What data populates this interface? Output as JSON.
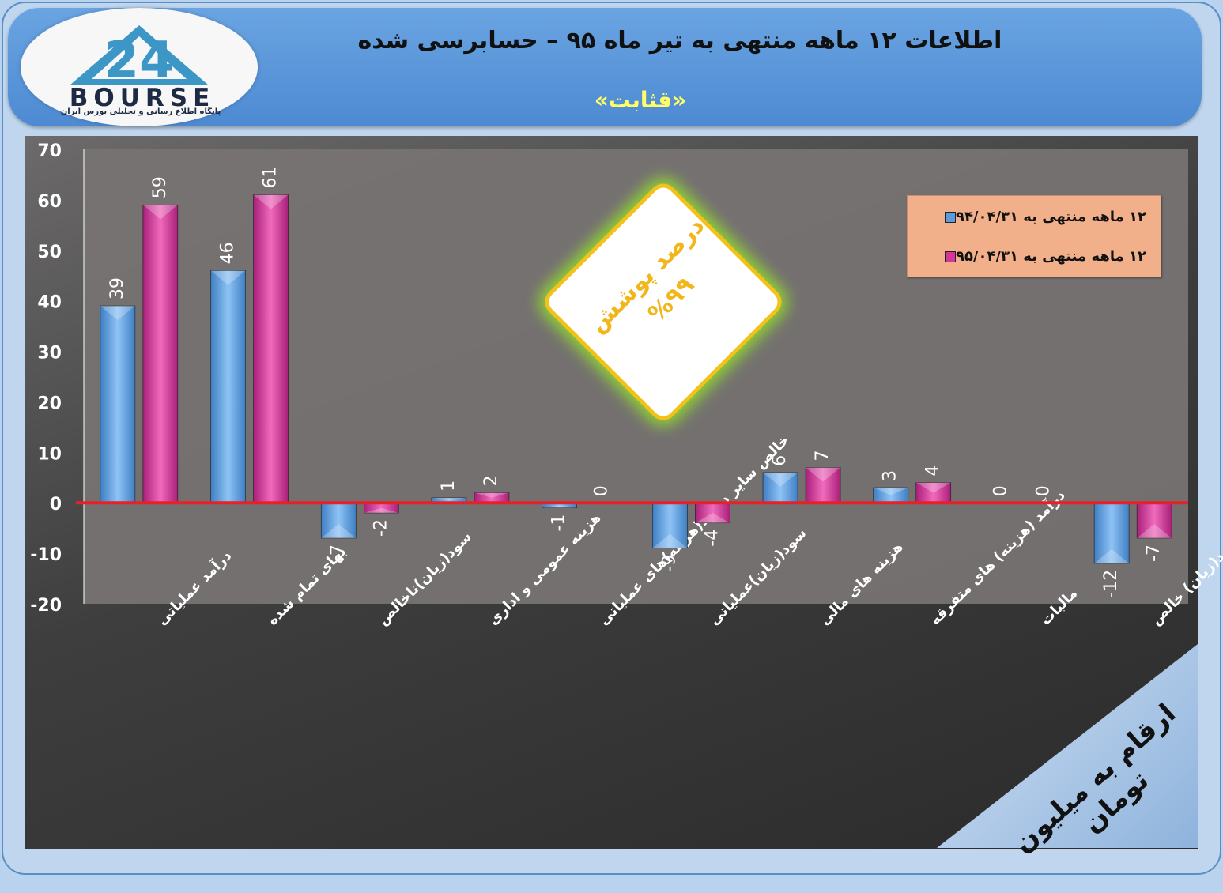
{
  "header": {
    "title": "اطلاعات ۱۲ ماهه منتهی به تیر ماه ۹۵ – حسابرسی شده",
    "subtitle": "«قثابت»",
    "logo_text": "BOURSE",
    "logo_tagline": "پایگاه اطلاع رسانی و تحلیلی بورس ایران"
  },
  "badge": {
    "line1": "درصد پوشش",
    "line2": "%۹۹",
    "border_color": "#f2c21b",
    "text_color": "#f2b61b"
  },
  "units_banner": "ارقام به میلیون تومان",
  "chart_data": {
    "type": "bar",
    "categories": [
      "درآمد عملیاتی",
      "بهای تمام شده",
      "سود(زیان)ناخالص",
      "هزینه عمومی و اداری",
      "خالص سایر درامد(هزینه)های عملیاتی",
      "سود(زیان)عملیاتی",
      "هزینه های مالی",
      "درآمد (هزینه) های متفرقه",
      "مالیات",
      "سود(زیان) خالص"
    ],
    "series": [
      {
        "name": "۱۲ ماهه منتهی به ۹۴/۰۴/۳۱",
        "color": "#5b9be0",
        "values": [
          39,
          46,
          -7,
          1,
          -1,
          -9,
          6,
          3,
          0,
          -12
        ]
      },
      {
        "name": "۱۲ ماهه منتهی به ۹۵/۰۴/۳۱",
        "color": "#d6359a",
        "values": [
          59,
          61,
          -2,
          2,
          0,
          -4,
          7,
          4,
          0,
          -7
        ]
      }
    ],
    "y_ticks": [
      70,
      60,
      50,
      40,
      30,
      20,
      10,
      0,
      -10,
      -20
    ],
    "ylim": [
      -20,
      70
    ],
    "zero_line_color": "#e8202a",
    "legend_position": "top-right"
  }
}
